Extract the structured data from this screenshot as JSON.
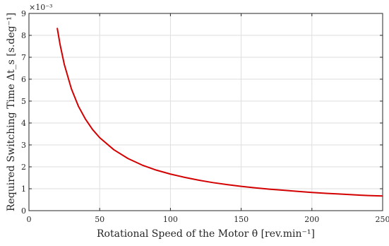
{
  "chart_data": {
    "type": "line",
    "title": "",
    "xlabel": "Rotational Speed of the Motor θ̇ [rev.min⁻¹]",
    "ylabel": "Required Switching Time Δt_s [s.deg⁻¹]",
    "y_exponent_label": "×10⁻³",
    "xlim": [
      0,
      250
    ],
    "ylim": [
      0,
      9
    ],
    "xticks": [
      "0",
      "50",
      "100",
      "150",
      "200",
      "250"
    ],
    "yticks": [
      "0",
      "1",
      "2",
      "3",
      "4",
      "5",
      "6",
      "7",
      "8",
      "9"
    ],
    "grid": true,
    "series": [
      {
        "name": "",
        "color": "#d40000",
        "x": [
          20,
          22,
          25,
          30,
          35,
          40,
          45,
          50,
          60,
          70,
          80,
          90,
          100,
          110,
          120,
          130,
          140,
          150,
          160,
          170,
          180,
          190,
          200,
          210,
          220,
          230,
          240,
          250
        ],
        "y": [
          8.33,
          7.58,
          6.67,
          5.56,
          4.76,
          4.17,
          3.7,
          3.33,
          2.78,
          2.38,
          2.08,
          1.85,
          1.67,
          1.52,
          1.39,
          1.28,
          1.19,
          1.11,
          1.04,
          0.98,
          0.93,
          0.88,
          0.83,
          0.79,
          0.76,
          0.72,
          0.69,
          0.67
        ]
      }
    ]
  }
}
